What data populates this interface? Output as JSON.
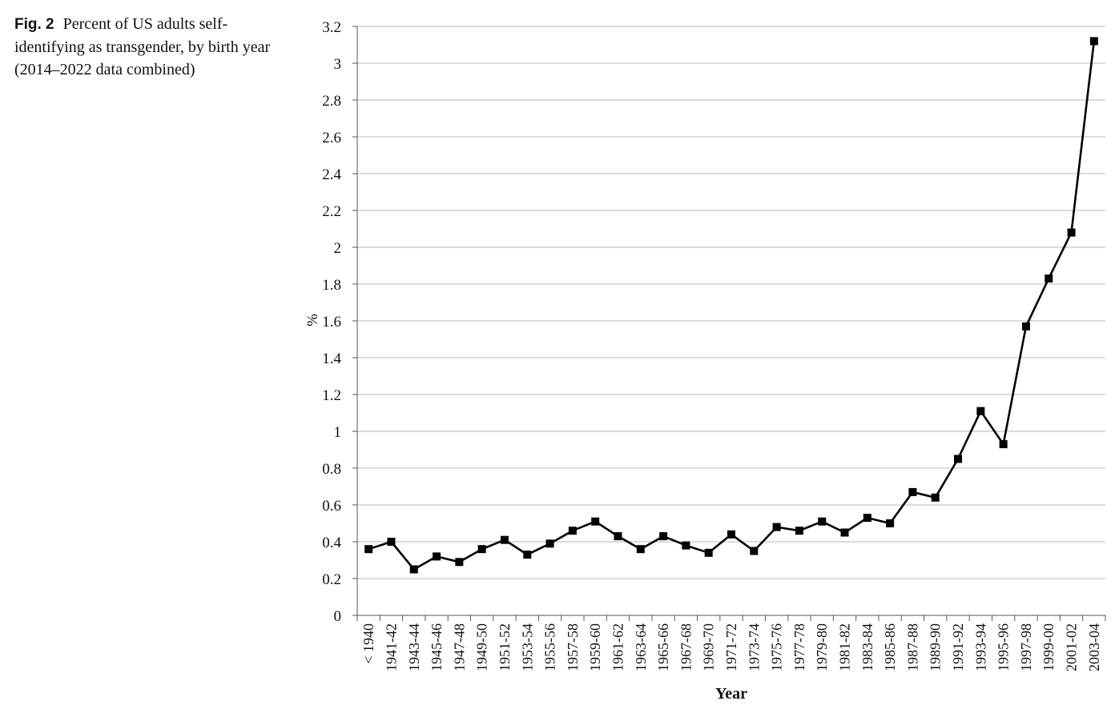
{
  "caption": {
    "label": "Fig. 2",
    "text": "Percent of US adults self-identifying as transgender, by birth year (2014–2022 data combined)"
  },
  "chart_data": {
    "type": "line",
    "title": "",
    "xlabel": "Year",
    "ylabel": "%",
    "ylim": [
      0,
      3.2
    ],
    "yticks": [
      "0",
      "0.2",
      "0.4",
      "0.6",
      "0.8",
      "1",
      "1.2",
      "1.4",
      "1.6",
      "1.8",
      "2",
      "2.2",
      "2.4",
      "2.6",
      "2.8",
      "3",
      "3.2"
    ],
    "grid": true,
    "legend": "none",
    "line_color": "#000000",
    "categories": [
      "< 1940",
      "1941-42",
      "1943-44",
      "1945-46",
      "1947-48",
      "1949-50",
      "1951-52",
      "1953-54",
      "1955-56",
      "1957-58",
      "1959-60",
      "1961-62",
      "1963-64",
      "1965-66",
      "1967-68",
      "1969-70",
      "1971-72",
      "1973-74",
      "1975-76",
      "1977-78",
      "1979-80",
      "1981-82",
      "1983-84",
      "1985-86",
      "1987-88",
      "1989-90",
      "1991-92",
      "1993-94",
      "1995-96",
      "1997-98",
      "1999-00",
      "2001-02",
      "2003-04"
    ],
    "values": [
      0.36,
      0.4,
      0.25,
      0.32,
      0.29,
      0.36,
      0.41,
      0.33,
      0.39,
      0.46,
      0.51,
      0.43,
      0.36,
      0.43,
      0.38,
      0.34,
      0.44,
      0.35,
      0.48,
      0.46,
      0.51,
      0.45,
      0.53,
      0.5,
      0.67,
      0.64,
      0.85,
      1.11,
      0.93,
      1.57,
      1.83,
      2.08,
      3.12
    ]
  }
}
